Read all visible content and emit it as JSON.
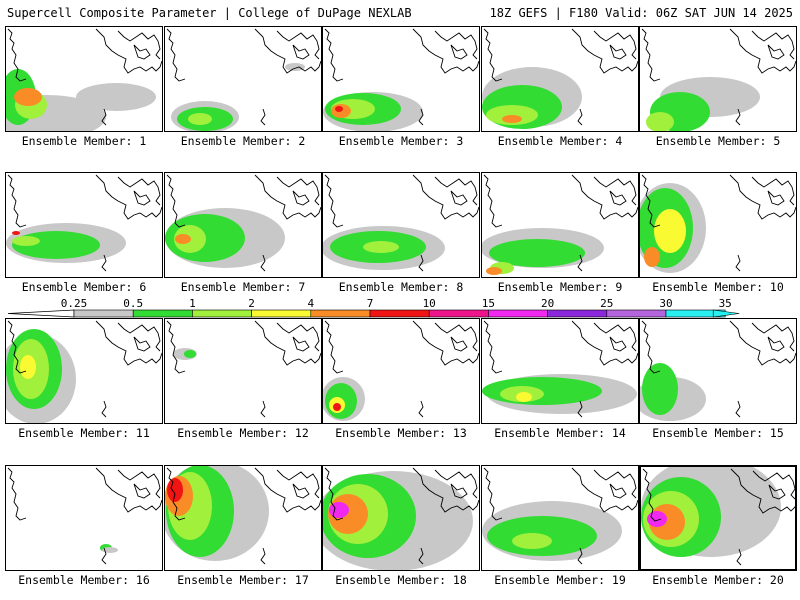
{
  "header": {
    "left": "Supercell Composite Parameter | College of DuPage NEXLAB",
    "right": "18Z GEFS | F180 Valid: 06Z SAT JUN 14 2025"
  },
  "colors": {
    "c1": "#c8c8c8",
    "c2": "#32dc32",
    "c3": "#a0f03c",
    "c4": "#fafa32",
    "c5": "#fa8c28",
    "c6": "#f01414",
    "c7": "#f0148c",
    "c8": "#f028f0",
    "c9": "#8c28dc",
    "c10": "#b464dc",
    "c11": "#28f0f0"
  },
  "colorbar": {
    "ticks": [
      "0.25",
      "0.5",
      "1",
      "2",
      "4",
      "7",
      "10",
      "15",
      "20",
      "25",
      "30",
      "35"
    ]
  },
  "panels": [
    {
      "label": "Ensemble Member: 1"
    },
    {
      "label": "Ensemble Member: 2"
    },
    {
      "label": "Ensemble Member: 3"
    },
    {
      "label": "Ensemble Member: 4"
    },
    {
      "label": "Ensemble Member: 5"
    },
    {
      "label": "Ensemble Member: 6"
    },
    {
      "label": "Ensemble Member: 7"
    },
    {
      "label": "Ensemble Member: 8"
    },
    {
      "label": "Ensemble Member: 9"
    },
    {
      "label": "Ensemble Member: 10"
    },
    {
      "label": "Ensemble Member: 11"
    },
    {
      "label": "Ensemble Member: 12"
    },
    {
      "label": "Ensemble Member: 13"
    },
    {
      "label": "Ensemble Member: 14"
    },
    {
      "label": "Ensemble Member: 15"
    },
    {
      "label": "Ensemble Member: 16"
    },
    {
      "label": "Ensemble Member: 17"
    },
    {
      "label": "Ensemble Member: 18"
    },
    {
      "label": "Ensemble Member: 19"
    },
    {
      "label": "Ensemble Member: 20"
    }
  ]
}
